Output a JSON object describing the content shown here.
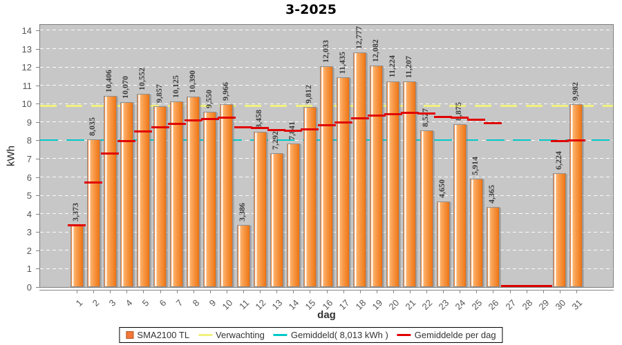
{
  "title": "3-2025",
  "y_axis": {
    "label": "kWh"
  },
  "x_axis": {
    "label": "dag"
  },
  "legend": [
    {
      "label": "SMA2100 TL",
      "marker": "square",
      "color": "#f4763a"
    },
    {
      "label": "Verwachting",
      "marker": "dash",
      "color": "#f1f17d"
    },
    {
      "label": "Gemiddeld( 8,013 kWh )",
      "marker": "dash",
      "color": "#00c8c8"
    },
    {
      "label": "Gemiddelde per dag",
      "marker": "dash",
      "color": "#e00000"
    }
  ],
  "chart_data": {
    "type": "bar",
    "title": "3-2025",
    "xlabel": "dag",
    "ylabel": "kWh",
    "ylim": [
      0,
      14.3
    ],
    "y_ticks": [
      0,
      1,
      2,
      3,
      4,
      5,
      6,
      7,
      8,
      9,
      10,
      11,
      12,
      13,
      14
    ],
    "grid": true,
    "legend_position": "bottom",
    "plot_background": "#c7c7c7",
    "categories": [
      1,
      2,
      3,
      4,
      5,
      6,
      7,
      8,
      9,
      10,
      11,
      12,
      13,
      14,
      15,
      16,
      17,
      18,
      19,
      20,
      21,
      22,
      23,
      24,
      25,
      26,
      27,
      28,
      29,
      30,
      31
    ],
    "series": [
      {
        "name": "SMA2100 TL",
        "type": "bar",
        "color": "#f47b20",
        "values": [
          3.373,
          8.035,
          10.406,
          10.07,
          10.552,
          9.857,
          10.125,
          10.39,
          9.55,
          9.966,
          3.386,
          8.458,
          7.292,
          7.841,
          9.812,
          12.033,
          11.435,
          12.777,
          12.082,
          11.224,
          11.207,
          8.527,
          4.65,
          8.875,
          5.914,
          4.365,
          0,
          0,
          0,
          6.224,
          9.982
        ],
        "value_labels": [
          "3,373",
          "8,035",
          "10,406",
          "10,070",
          "10,552",
          "9,857",
          "10,125",
          "10,390",
          "9,550",
          "9,966",
          "3,386",
          "8,458",
          "7,292",
          "7,841",
          "9,812",
          "12,033",
          "11,435",
          "12,777",
          "12,082",
          "11,224",
          "11,207",
          "8,527",
          "4,650",
          "8,875",
          "5,914",
          "4,365",
          "",
          "",
          "",
          "6,224",
          "9,982"
        ]
      },
      {
        "name": "Verwachting",
        "type": "hline",
        "style": "dashed",
        "color": "#f1f17d",
        "value": 9.87,
        "thickness": 3,
        "dash": [
          24,
          13
        ]
      },
      {
        "name": "Gemiddeld( 8,013 kWh )",
        "type": "hline",
        "style": "dashed",
        "color": "#00c8c8",
        "value": 8.013,
        "thickness": 2,
        "dash": [
          26,
          12
        ]
      },
      {
        "name": "Gemiddelde per dag",
        "type": "per-category-dash",
        "color": "#e00000",
        "values": [
          3.373,
          5.704,
          7.271,
          7.971,
          8.487,
          8.716,
          8.917,
          9.101,
          9.151,
          9.232,
          8.701,
          8.681,
          8.574,
          8.522,
          8.608,
          8.822,
          8.975,
          9.187,
          9.339,
          9.433,
          9.518,
          9.473,
          9.263,
          9.247,
          9.113,
          8.931,
          0,
          0,
          0,
          7.948,
          8.013
        ]
      }
    ]
  }
}
